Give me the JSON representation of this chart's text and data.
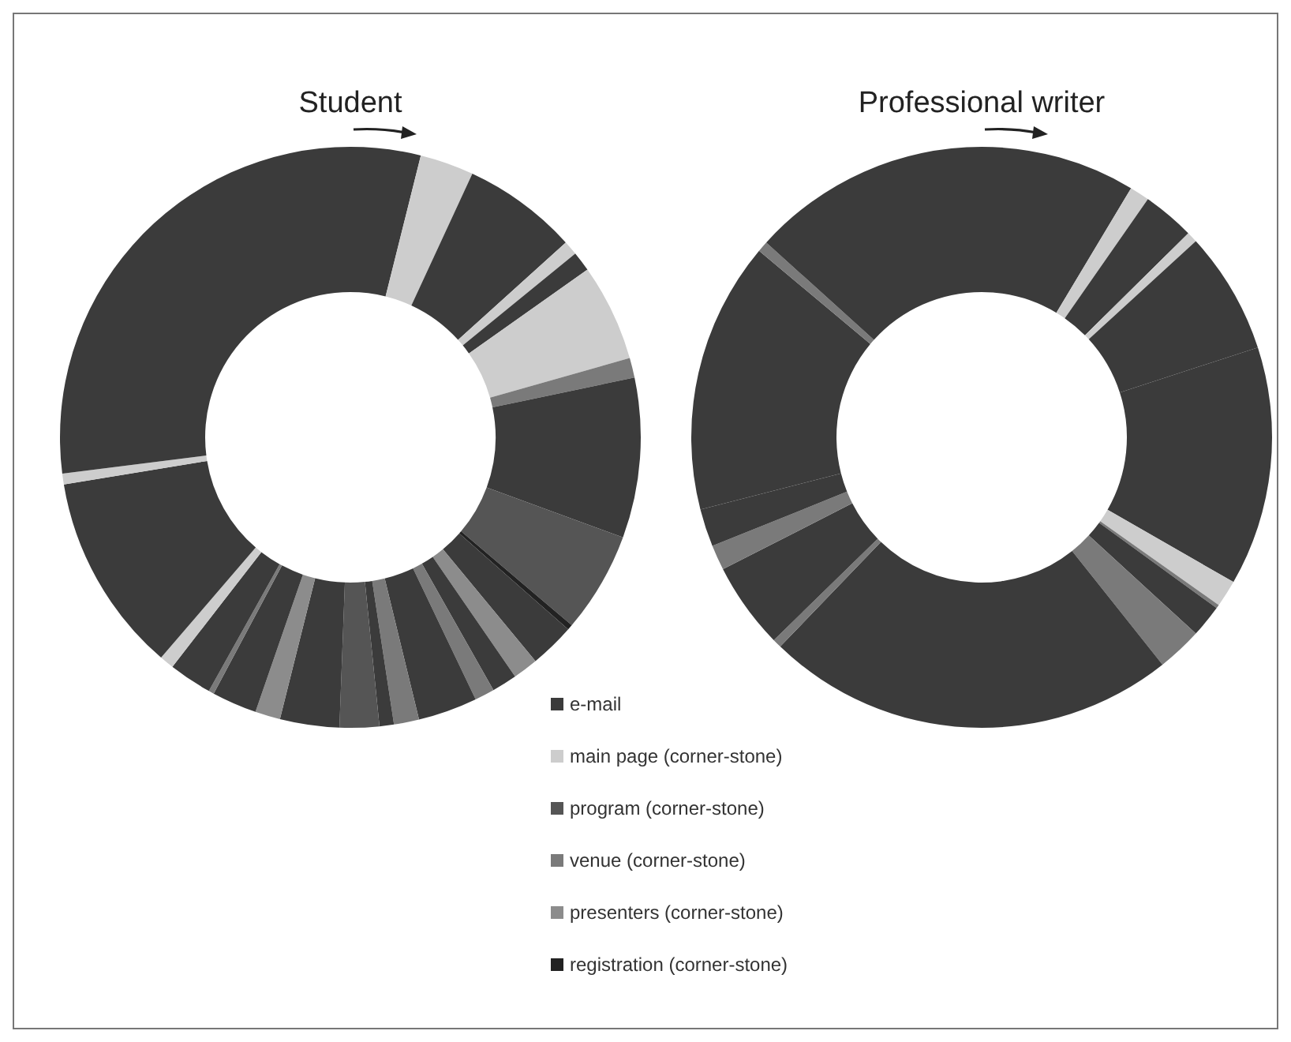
{
  "chart_data": [
    {
      "type": "donut",
      "title": "Student",
      "categories": [
        null,
        null,
        null,
        null,
        null,
        null,
        null,
        null,
        null,
        null,
        null,
        null,
        null,
        null,
        null,
        null,
        null,
        null,
        null,
        null,
        null,
        null,
        null,
        null,
        null,
        null,
        null
      ],
      "values": [
        3.9,
        3.0,
        6.4,
        0.8,
        1.1,
        5.4,
        1.1,
        8.9,
        5.6,
        0.3,
        2.5,
        1.4,
        1.4,
        1.1,
        3.3,
        1.4,
        0.8,
        2.2,
        3.3,
        1.4,
        2.5,
        0.3,
        2.4,
        0.8,
        11.1,
        0.6,
        27.0
      ],
      "colors": [
        "#3b3b3b",
        "#cdcdcd",
        "#3b3b3b",
        "#cdcdcd",
        "#3b3b3b",
        "#cdcdcd",
        "#7a7a7a",
        "#3b3b3b",
        "#555555",
        "#222222",
        "#3b3b3b",
        "#8c8c8c",
        "#3b3b3b",
        "#7a7a7a",
        "#3b3b3b",
        "#7a7a7a",
        "#3b3b3b",
        "#555555",
        "#3b3b3b",
        "#8c8c8c",
        "#3b3b3b",
        "#7a7a7a",
        "#3b3b3b",
        "#cdcdcd",
        "#3b3b3b",
        "#cdcdcd",
        "#3b3b3b"
      ]
    },
    {
      "type": "donut",
      "title": "Professional writer",
      "categories": [
        null,
        null,
        null,
        null,
        null,
        null,
        null,
        null,
        null,
        null,
        null,
        null,
        null,
        null,
        null,
        null,
        null,
        null
      ],
      "values": [
        8.6,
        1.1,
        2.9,
        0.6,
        6.8,
        13.3,
        1.5,
        0.2,
        1.8,
        2.5,
        22.9,
        0.5,
        4.8,
        1.4,
        2.1,
        15.1,
        0.6,
        13.3
      ],
      "colors": [
        "#3b3b3b",
        "#cdcdcd",
        "#3b3b3b",
        "#cdcdcd",
        "#3b3b3b",
        "#3b3b3b",
        "#cdcdcd",
        "#7a7a7a",
        "#3b3b3b",
        "#7a7a7a",
        "#3b3b3b",
        "#7a7a7a",
        "#3b3b3b",
        "#7a7a7a",
        "#3b3b3b",
        "#3b3b3b",
        "#7a7a7a",
        "#3b3b3b"
      ]
    },
    {
      "type": "other",
      "categories": [
        "e-mail",
        "main page (corner-stone)",
        "program (corner-stone)",
        "venue (corner-stone)",
        "presenters (corner-stone)",
        "registration (corner-stone)"
      ],
      "colors": [
        "#3b3b3b",
        "#cdcdcd",
        "#555555",
        "#7a7a7a",
        "#8c8c8c",
        "#222222"
      ]
    }
  ]
}
